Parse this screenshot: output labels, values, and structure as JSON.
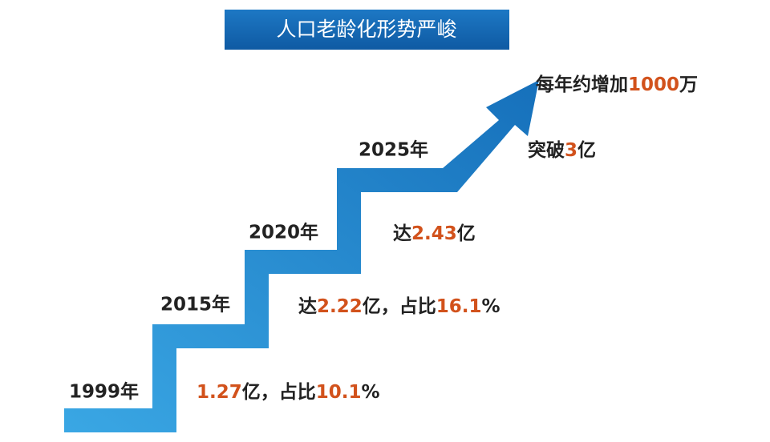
{
  "title": "人口老龄化形势严峻",
  "steps": [
    {
      "year": "1999年",
      "note": [
        {
          "text": "1.27",
          "color": "#d2521c"
        },
        {
          "text": "亿，占比",
          "color": "#222222"
        },
        {
          "text": "10.1",
          "color": "#d2521c"
        },
        {
          "text": "%",
          "color": "#222222"
        }
      ]
    },
    {
      "year": "2015年",
      "note": [
        {
          "text": "达",
          "color": "#222222"
        },
        {
          "text": "2.22",
          "color": "#d2521c"
        },
        {
          "text": "亿，占比",
          "color": "#222222"
        },
        {
          "text": "16.1",
          "color": "#d2521c"
        },
        {
          "text": "%",
          "color": "#222222"
        }
      ]
    },
    {
      "year": "2020年",
      "note": [
        {
          "text": "达",
          "color": "#222222"
        },
        {
          "text": "2.43",
          "color": "#d2521c"
        },
        {
          "text": "亿",
          "color": "#222222"
        }
      ]
    },
    {
      "year": "2025年",
      "note": [
        {
          "text": "突破",
          "color": "#222222"
        },
        {
          "text": "3",
          "color": "#d2521c"
        },
        {
          "text": "亿",
          "color": "#222222"
        }
      ]
    }
  ],
  "trend": [
    {
      "text": "每年约增加",
      "color": "#222222"
    },
    {
      "text": "1000",
      "color": "#d2521c"
    },
    {
      "text": "万",
      "color": "#222222"
    }
  ]
}
